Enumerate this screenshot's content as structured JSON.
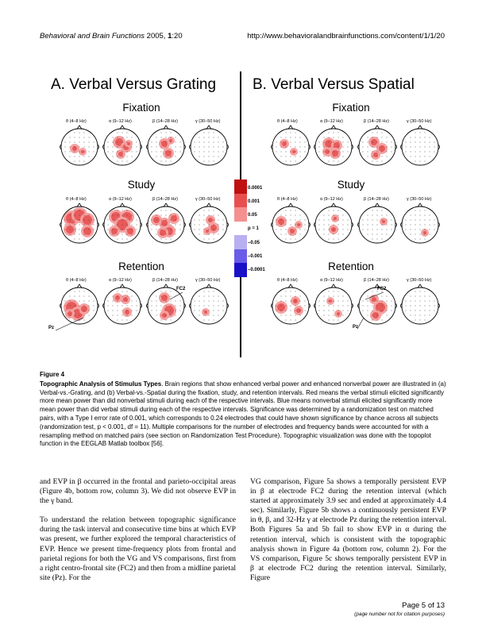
{
  "header": {
    "journal": "Behavioral and Brain Functions",
    "year_ref_pre": "2005, ",
    "volume": "1",
    "article": ":20",
    "url": "http://www.behavioralandbrainfunctions.com/content/1/1/20"
  },
  "figure": {
    "panels": [
      {
        "title": "A. Verbal Versus Grating"
      },
      {
        "title": "B. Verbal Versus Spatial"
      }
    ],
    "conditions": [
      "Fixation",
      "Study",
      "Retention"
    ],
    "bands": [
      "θ (4–8 Hz)",
      "α (9–12 Hz)",
      "β (14–28 Hz)",
      "γ (30–50 Hz)"
    ],
    "legend": [
      "0.0001",
      "0.001",
      "0.05",
      "p = 1",
      "–0.05",
      "–0.001",
      "–0.0001"
    ],
    "legend_colors": [
      "#c01010",
      "#e85050",
      "#f59090",
      "#ffffff",
      "#b8b0f0",
      "#6a5ce8",
      "#1a10c8"
    ],
    "site_labels": {
      "fc2": "FC2",
      "pz": "Pz"
    }
  },
  "caption": {
    "label": "Figure 4",
    "title": "Topographic Analysis of Stimulus Types",
    "text": ". Brain regions that show enhanced verbal power and enhanced nonverbal power are illustrated in (a) Verbal-vs.-Grating, and (b) Verbal-vs.-Spatial during the fixation, study, and retention intervals. Red means the verbal stimuli elicited significantly more mean power than did nonverbal stimuli during each of the respective intervals. Blue means nonverbal stimuli elicited significantly more mean power than did verbal stimuli during each of the respective intervals. Significance was determined by a randomization test on matched pairs, with a Type I error rate of 0.001, which corresponds to 0.24 electrodes that could have shown significance by chance across all subjects (randomization test, p < 0.001, df = 11). Multiple comparisons for the number of electrodes and frequency bands were accounted for with a resampling method on matched pairs (see section on Randomization Test Procedure). Topographic visualization was done with the topoplot function in the EEGLAB Matlab toolbox [56]."
  },
  "body": {
    "left_p1": "and EVP in β occurred in the frontal and parieto-occipital areas (Figure 4b, bottom row, column 3). We did not observe EVP in the γ band.",
    "left_p2": "To understand the relation between topographic significance during the task interval and consecutive time bins at which EVP was present, we further explored the temporal characteristics of EVP. Hence we present time-frequency plots from frontal and parietal regions for both the VG and VS comparisons, first from a right centro-frontal site (FC2) and then from a midline parietal site (Pz). For the",
    "right_p1": "VG comparison, Figure 5a shows a temporally persistent EVP in β at electrode FC2 during the retention interval (which started at approximately 3.9 sec and ended at approximately 4.4 sec). Similarly, Figure 5b shows a continuously persistent EVP in θ, β, and 32-Hz γ at electrode Pz during the retention interval. Both Figures 5a and 5b fail to show EVP in α during the retention interval, which is consistent with the topographic analysis shown in Figure 4a (bottom row, column 2). For the VS comparison, Figure 5c shows temporally persistent EVP in β at electrode FC2 during the retention interval. Similarly, Figure"
  },
  "footer": {
    "page": "Page 5 of 13",
    "note": "(page number not for citation purposes)"
  }
}
